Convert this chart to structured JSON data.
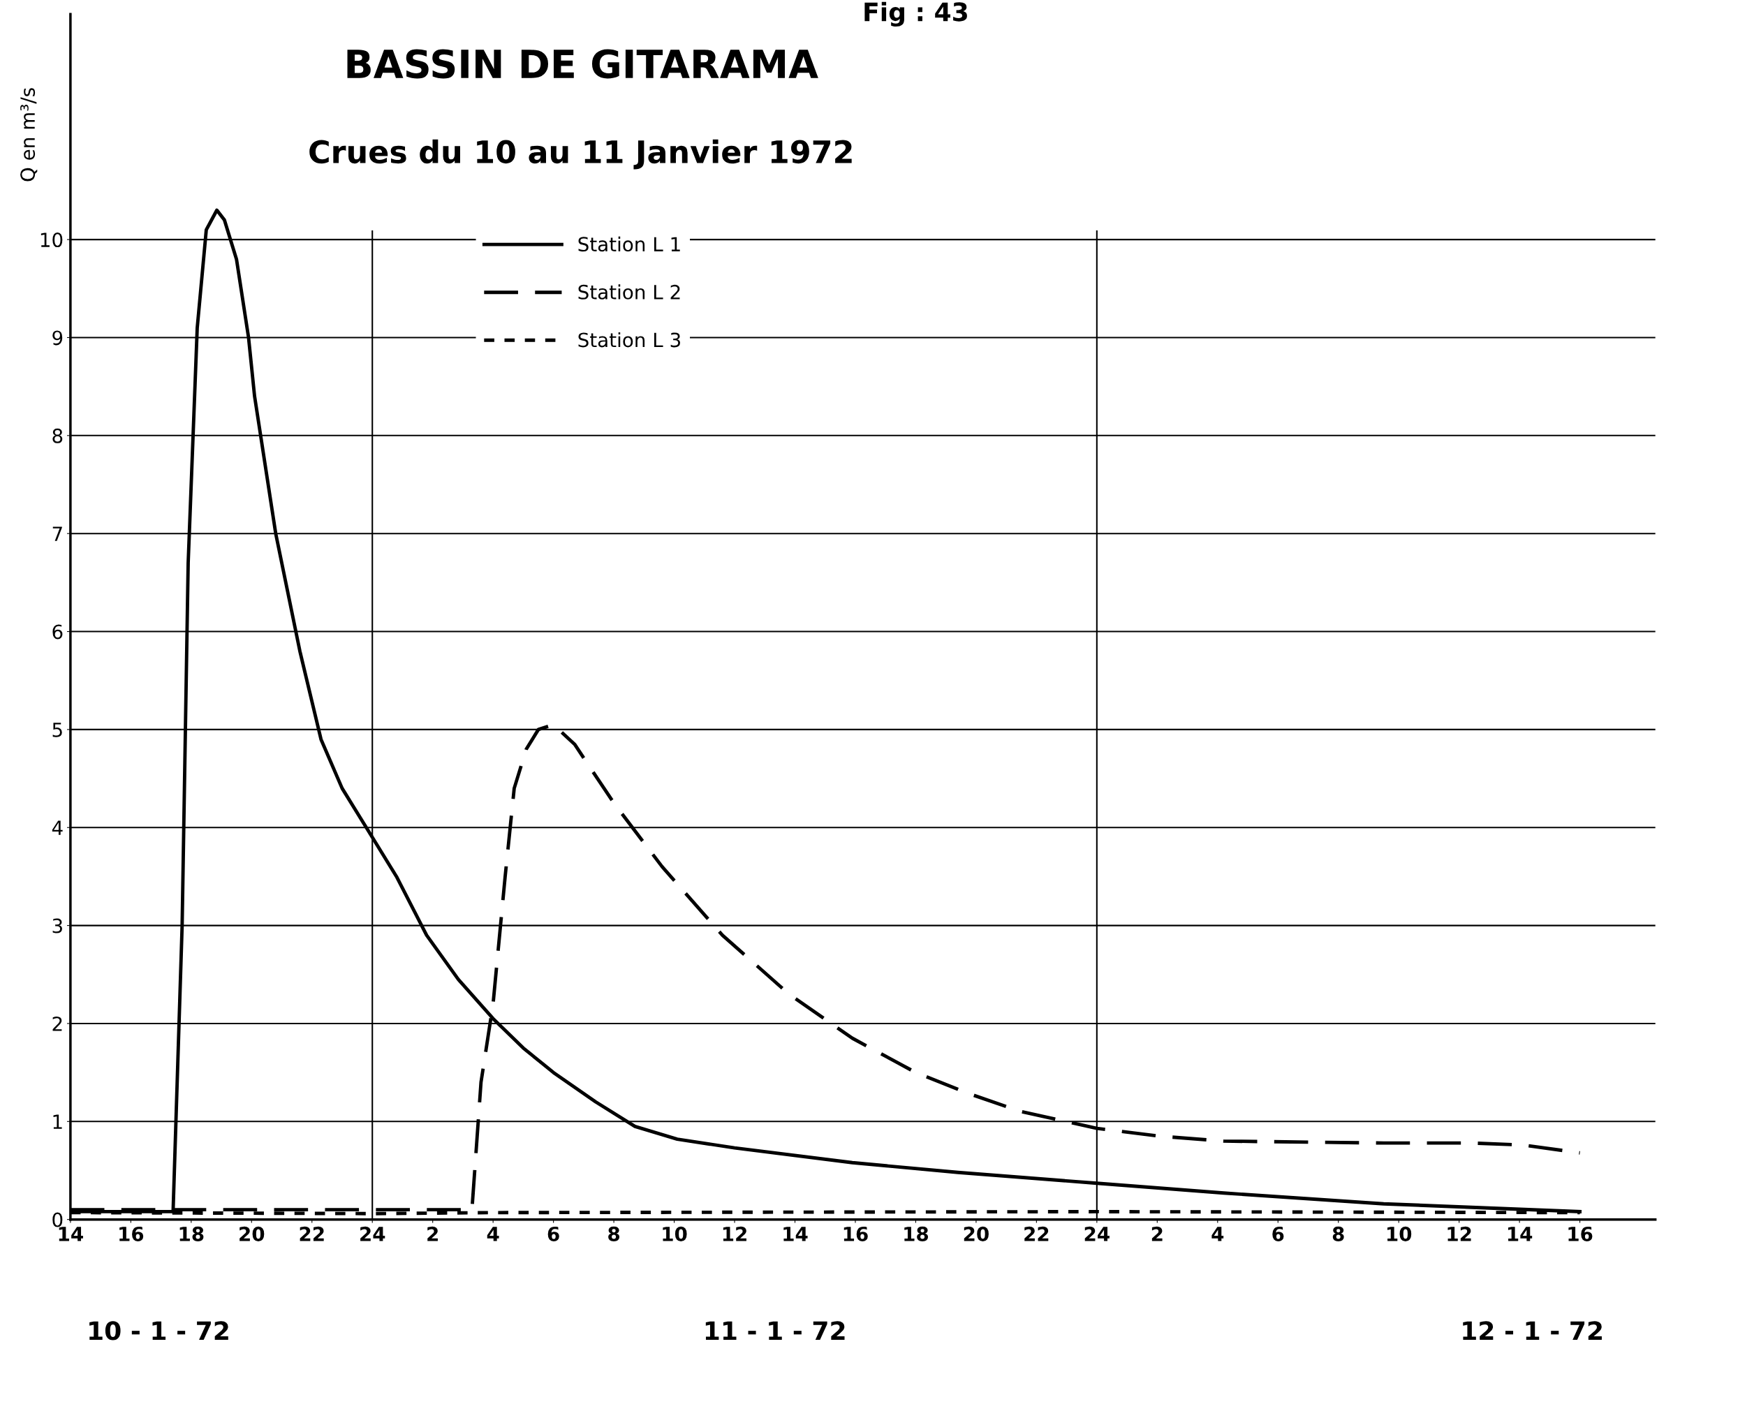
{
  "chart_data": {
    "type": "line",
    "title": "BASSIN DE GITARAMA",
    "subtitle": "Crues du 10 au 11 Janvier 1972",
    "ylabel": "Q en m³/s",
    "annotations": [
      "Fig : 43",
      "10 - 1 - 72",
      "11 - 1 - 72",
      "12 - 1 - 72"
    ],
    "xlim": [
      "1972-01-10T14:00",
      "1972-01-12T18:30"
    ],
    "ylim": [
      0,
      12.3
    ],
    "xticks": [
      {
        "value": "1972-01-10T14:00",
        "label": "14"
      },
      {
        "value": "1972-01-10T16:00",
        "label": "16"
      },
      {
        "value": "1972-01-10T18:00",
        "label": "18"
      },
      {
        "value": "1972-01-10T20:00",
        "label": "20"
      },
      {
        "value": "1972-01-10T22:00",
        "label": "22"
      },
      {
        "value": "1972-01-11T00:00",
        "label": "24"
      },
      {
        "value": "1972-01-11T02:00",
        "label": "2"
      },
      {
        "value": "1972-01-11T04:00",
        "label": "4"
      },
      {
        "value": "1972-01-11T06:00",
        "label": "6"
      },
      {
        "value": "1972-01-11T08:00",
        "label": "8"
      },
      {
        "value": "1972-01-11T10:00",
        "label": "10"
      },
      {
        "value": "1972-01-11T12:00",
        "label": "12"
      },
      {
        "value": "1972-01-11T14:00",
        "label": "14"
      },
      {
        "value": "1972-01-11T16:00",
        "label": "16"
      },
      {
        "value": "1972-01-11T18:00",
        "label": "18"
      },
      {
        "value": "1972-01-11T20:00",
        "label": "20"
      },
      {
        "value": "1972-01-11T22:00",
        "label": "22"
      },
      {
        "value": "1972-01-12T00:00",
        "label": "24"
      },
      {
        "value": "1972-01-12T02:00",
        "label": "2"
      },
      {
        "value": "1972-01-12T04:00",
        "label": "4"
      },
      {
        "value": "1972-01-12T06:00",
        "label": "6"
      },
      {
        "value": "1972-01-12T08:00",
        "label": "8"
      },
      {
        "value": "1972-01-12T10:00",
        "label": "10"
      },
      {
        "value": "1972-01-12T12:00",
        "label": "12"
      },
      {
        "value": "1972-01-12T14:00",
        "label": "14"
      },
      {
        "value": "1972-01-12T16:00",
        "label": "16"
      }
    ],
    "yticks": [
      0,
      1,
      2,
      3,
      4,
      5,
      6,
      7,
      8,
      9,
      10
    ],
    "grid": "y",
    "legend": "top left",
    "marker": "none",
    "ref_lines": [
      {
        "axis": "x",
        "value": "1972-01-11T00:00",
        "label": null
      },
      {
        "axis": "x",
        "value": "1972-01-12T00:00",
        "label": null
      }
    ],
    "series": [
      {
        "name": "Station L 1",
        "color": "#000000",
        "line_style": "solid",
        "x": [
          "1972-01-10T14:00",
          "1972-01-10T17:24",
          "1972-01-10T17:42",
          "1972-01-10T17:54",
          "1972-01-10T18:12",
          "1972-01-10T18:30",
          "1972-01-10T18:51",
          "1972-01-10T19:06",
          "1972-01-10T19:30",
          "1972-01-10T19:54",
          "1972-01-10T20:06",
          "1972-01-10T20:48",
          "1972-01-10T21:36",
          "1972-01-10T22:18",
          "1972-01-10T23:00",
          "1972-01-11T00:00",
          "1972-01-11T00:48",
          "1972-01-11T01:48",
          "1972-01-11T02:51",
          "1972-01-11T04:00",
          "1972-01-11T05:00",
          "1972-01-11T06:00",
          "1972-01-11T07:24",
          "1972-01-11T08:42",
          "1972-01-11T10:06",
          "1972-01-11T12:00",
          "1972-01-11T15:54",
          "1972-01-11T19:24",
          "1972-01-12T00:00",
          "1972-01-12T04:12",
          "1972-01-12T09:30",
          "1972-01-12T16:00"
        ],
        "values": [
          0.08,
          0.08,
          3.0,
          6.7,
          9.1,
          10.1,
          10.3,
          10.2,
          9.8,
          9.0,
          8.4,
          7.0,
          5.8,
          4.9,
          4.4,
          3.9,
          3.5,
          2.9,
          2.45,
          2.05,
          1.75,
          1.5,
          1.2,
          0.95,
          0.82,
          0.73,
          0.58,
          0.48,
          0.37,
          0.27,
          0.16,
          0.08
        ]
      },
      {
        "name": "Station L 2",
        "color": "#000000",
        "line_style": "dashed",
        "x": [
          "1972-01-10T14:00",
          "1972-01-11T03:18",
          "1972-01-11T03:36",
          "1972-01-11T04:00",
          "1972-01-11T04:24",
          "1972-01-11T04:42",
          "1972-01-11T05:06",
          "1972-01-11T05:30",
          "1972-01-11T06:00",
          "1972-01-11T06:42",
          "1972-01-11T08:00",
          "1972-01-11T09:36",
          "1972-01-11T11:36",
          "1972-01-11T13:48",
          "1972-01-11T15:54",
          "1972-01-11T18:00",
          "1972-01-11T19:48",
          "1972-01-11T21:30",
          "1972-01-12T00:00",
          "1972-01-12T02:06",
          "1972-01-12T04:12",
          "1972-01-12T09:30",
          "1972-01-12T12:24",
          "1972-01-12T14:06",
          "1972-01-12T16:00"
        ],
        "values": [
          0.1,
          0.1,
          1.4,
          2.2,
          3.5,
          4.4,
          4.8,
          5.0,
          5.05,
          4.85,
          4.25,
          3.6,
          2.9,
          2.3,
          1.85,
          1.5,
          1.28,
          1.1,
          0.93,
          0.85,
          0.8,
          0.78,
          0.78,
          0.76,
          0.68
        ]
      },
      {
        "name": "Station L 3",
        "color": "#000000",
        "line_style": "dotted",
        "x": [
          "1972-01-10T14:00",
          "1972-01-11T00:00",
          "1972-01-11T04:00",
          "1972-01-12T00:00",
          "1972-01-12T16:00"
        ],
        "values": [
          0.07,
          0.06,
          0.07,
          0.08,
          0.07
        ]
      }
    ]
  }
}
